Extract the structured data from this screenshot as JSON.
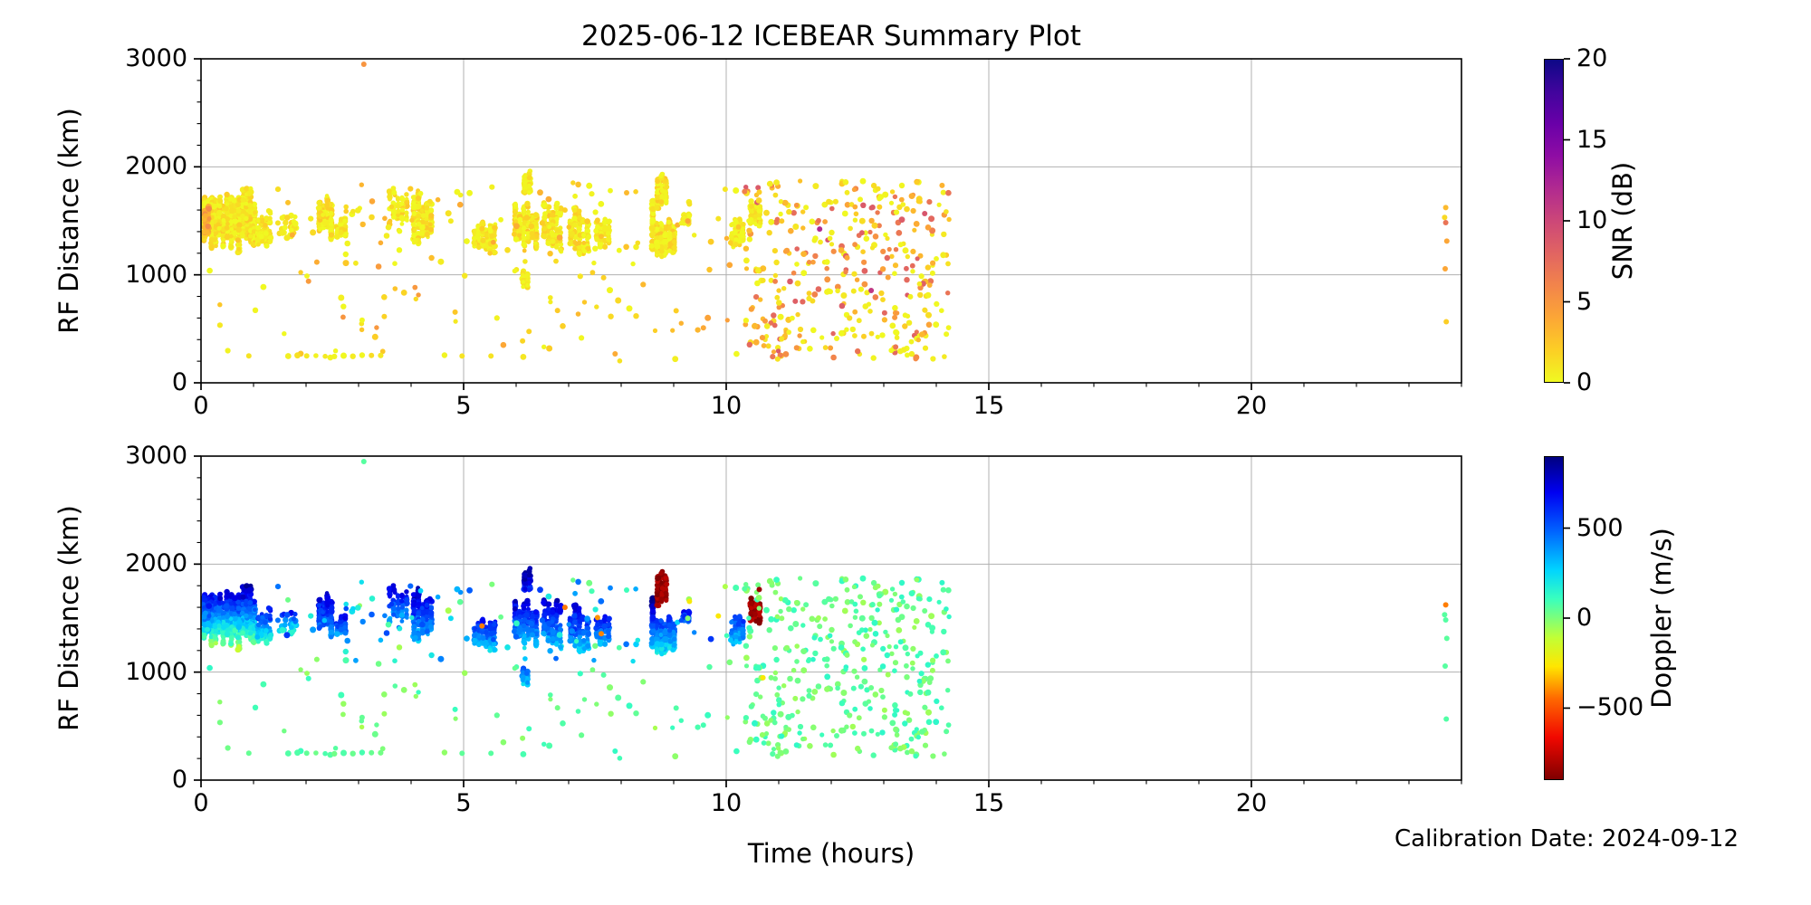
{
  "figure": {
    "title": "2025-06-12 ICEBEAR Summary Plot",
    "x_label": "Time (hours)",
    "y_label": "RF Distance (km)",
    "calibration_note": "Calibration Date: 2024-09-12",
    "background": "#ffffff",
    "text_color": "#000000",
    "grid_color": "#b0b0b0",
    "spine_color": "#000000"
  },
  "chart_data": {
    "type": "scatter",
    "title": "2025-06-12 ICEBEAR Summary Plot",
    "xlabel": "Time (hours)",
    "ylabel": "RF Distance (km)",
    "x_axis": {
      "range": [
        0,
        24
      ],
      "major_ticks": [
        0,
        5,
        10,
        15,
        20
      ],
      "minor_tick_step": 1,
      "grid": true
    },
    "y_axis": {
      "range": [
        0,
        3000
      ],
      "major_ticks": [
        0,
        1000,
        2000,
        3000
      ],
      "minor_tick_step": 200,
      "grid": true
    },
    "seed": 42,
    "panels": [
      {
        "name": "snr",
        "color_by": "snr",
        "colorbar": {
          "label": "SNR (dB)",
          "min": 0,
          "max": 20,
          "ticks": [
            20,
            15,
            10,
            5,
            0
          ],
          "colormap": "plasma_r",
          "reversed": true,
          "stops": [
            [
              0,
              "#0d0887"
            ],
            [
              0.1,
              "#41049d"
            ],
            [
              0.2,
              "#6a00a8"
            ],
            [
              0.3,
              "#8f0da4"
            ],
            [
              0.4,
              "#b12a90"
            ],
            [
              0.5,
              "#cc4778"
            ],
            [
              0.6,
              "#e16462"
            ],
            [
              0.7,
              "#f2844b"
            ],
            [
              0.8,
              "#fca636"
            ],
            [
              0.9,
              "#fcce25"
            ],
            [
              1,
              "#f0f921"
            ]
          ]
        }
      },
      {
        "name": "doppler",
        "color_by": "dop",
        "colorbar": {
          "label": "Doppler (m/s)",
          "min": -900,
          "max": 900,
          "ticks": [
            500,
            0,
            -500
          ],
          "colormap": "jet_r",
          "reversed": true,
          "stops": [
            [
              0,
              "#000080"
            ],
            [
              0.11,
              "#0000f1"
            ],
            [
              0.23,
              "#0063ff"
            ],
            [
              0.35,
              "#00d4ff"
            ],
            [
              0.44,
              "#39ffbe"
            ],
            [
              0.5,
              "#7dff7a"
            ],
            [
              0.56,
              "#c1ff36"
            ],
            [
              0.65,
              "#ffe600"
            ],
            [
              0.75,
              "#ff6800"
            ],
            [
              0.87,
              "#f10800"
            ],
            [
              1,
              "#800000"
            ]
          ]
        }
      }
    ],
    "clusters": [
      {
        "t": [
          0.02,
          1.05
        ],
        "rf": [
          1200,
          1810
        ],
        "n": 650,
        "style": "streaks",
        "snr": [
          0,
          2.5
        ],
        "dop": [
          -100,
          850
        ],
        "dop_by_rf": true
      },
      {
        "t": [
          0.04,
          0.18
        ],
        "rf": [
          1350,
          1680
        ],
        "n": 50,
        "style": "streaks",
        "snr": [
          3,
          6
        ],
        "dop": [
          200,
          700
        ],
        "dop_by_rf": true
      },
      {
        "t": [
          1.05,
          1.35
        ],
        "rf": [
          1260,
          1620
        ],
        "n": 80,
        "style": "streaks",
        "snr": [
          0,
          2
        ],
        "dop": [
          100,
          750
        ],
        "dop_by_rf": true
      },
      {
        "t": [
          1.45,
          1.85
        ],
        "rf": [
          1350,
          1550
        ],
        "n": 25,
        "style": "scatter",
        "snr": [
          0,
          2
        ],
        "dop": [
          100,
          600
        ],
        "dop_by_rf": true
      },
      {
        "t": [
          2.22,
          2.52
        ],
        "rf": [
          1300,
          1790
        ],
        "n": 140,
        "style": "streaks",
        "snr": [
          0,
          2.5
        ],
        "dop": [
          350,
          830
        ],
        "dop_by_rf": true
      },
      {
        "t": [
          2.55,
          2.78
        ],
        "rf": [
          1290,
          1560
        ],
        "n": 55,
        "style": "streaks",
        "snr": [
          0,
          2
        ],
        "dop": [
          250,
          780
        ],
        "dop_by_rf": true
      },
      {
        "t": [
          3.55,
          3.95
        ],
        "rf": [
          1430,
          1850
        ],
        "n": 70,
        "style": "streaks",
        "snr": [
          0,
          2.5
        ],
        "dop": [
          300,
          800
        ],
        "dop_by_rf": true
      },
      {
        "t": [
          4.02,
          4.42
        ],
        "rf": [
          1250,
          1790
        ],
        "n": 200,
        "style": "streaks",
        "snr": [
          0,
          2.5
        ],
        "dop": [
          250,
          840
        ],
        "dop_by_rf": true
      },
      {
        "t": [
          5.18,
          5.62
        ],
        "rf": [
          1150,
          1520
        ],
        "n": 120,
        "style": "streaks",
        "snr": [
          0,
          2.5
        ],
        "dop": [
          150,
          750
        ],
        "dop_by_rf": true
      },
      {
        "t": [
          5.95,
          6.42
        ],
        "rf": [
          1180,
          1700
        ],
        "n": 180,
        "style": "streaks",
        "snr": [
          0,
          3
        ],
        "dop": [
          200,
          820
        ],
        "dop_by_rf": true
      },
      {
        "t": [
          6.12,
          6.3
        ],
        "rf": [
          1700,
          1985
        ],
        "n": 60,
        "style": "streaks",
        "snr": [
          0,
          2
        ],
        "dop": [
          600,
          900
        ],
        "dop_by_rf": true
      },
      {
        "t": [
          6.1,
          6.25
        ],
        "rf": [
          870,
          1060
        ],
        "n": 35,
        "style": "streaks",
        "snr": [
          0,
          2
        ],
        "dop": [
          250,
          550
        ],
        "dop_by_rf": true
      },
      {
        "t": [
          6.5,
          6.88
        ],
        "rf": [
          1200,
          1700
        ],
        "n": 130,
        "style": "streaks",
        "snr": [
          0,
          2.5
        ],
        "dop": [
          250,
          820
        ],
        "dop_by_rf": true
      },
      {
        "t": [
          7.0,
          7.4
        ],
        "rf": [
          1150,
          1640
        ],
        "n": 120,
        "style": "streaks",
        "snr": [
          0,
          2.5
        ],
        "dop": [
          200,
          800
        ],
        "dop_by_rf": true
      },
      {
        "t": [
          7.5,
          7.8
        ],
        "rf": [
          1230,
          1530
        ],
        "n": 70,
        "style": "streaks",
        "snr": [
          0,
          2
        ],
        "dop": [
          250,
          720
        ],
        "dop_by_rf": true
      },
      {
        "t": [
          8.56,
          8.64
        ],
        "rf": [
          1520,
          1690
        ],
        "n": 35,
        "style": "streaks",
        "snr": [
          0,
          2
        ],
        "dop": [
          720,
          900
        ],
        "dop_by_rf": true
      },
      {
        "t": [
          8.66,
          8.88
        ],
        "rf": [
          1600,
          1950
        ],
        "n": 90,
        "style": "streaks",
        "snr": [
          0,
          2.5
        ],
        "dop": [
          -920,
          -770
        ],
        "dop_by_rf": false
      },
      {
        "t": [
          8.56,
          9.04
        ],
        "rf": [
          1130,
          1530
        ],
        "n": 200,
        "style": "streaks",
        "snr": [
          0,
          2.5
        ],
        "dop": [
          150,
          650
        ],
        "dop_by_rf": true
      },
      {
        "t": [
          9.16,
          9.32
        ],
        "rf": [
          1430,
          1590
        ],
        "n": 45,
        "style": "streaks",
        "snr": [
          0,
          2
        ],
        "dop": [
          350,
          780
        ],
        "dop_by_rf": true
      },
      {
        "t": [
          10.08,
          10.35
        ],
        "rf": [
          1190,
          1570
        ],
        "n": 70,
        "style": "streaks",
        "snr": [
          0,
          2.5
        ],
        "dop": [
          250,
          620
        ],
        "dop_by_rf": true
      },
      {
        "t": [
          10.44,
          10.68
        ],
        "rf": [
          1430,
          1730
        ],
        "n": 55,
        "style": "streaks",
        "snr": [
          0,
          2
        ],
        "dop": [
          -920,
          -760
        ],
        "dop_by_rf": false
      },
      {
        "t": [
          10.35,
          14.25
        ],
        "rf": [
          220,
          1870
        ],
        "n": 380,
        "style": "scatter",
        "snr": [
          0,
          9
        ],
        "dop": [
          -60,
          140
        ],
        "dop_by_rf": false
      },
      {
        "t": [
          0.1,
          10.35
        ],
        "rf": [
          200,
          1120
        ],
        "n": 75,
        "style": "scatter",
        "snr": [
          0,
          5
        ],
        "dop": [
          -70,
          130
        ],
        "dop_by_rf": false
      },
      {
        "t": [
          1.3,
          10.4
        ],
        "rf": [
          1100,
          1860
        ],
        "n": 90,
        "style": "scatter",
        "snr": [
          0,
          4
        ],
        "dop": [
          -80,
          600
        ],
        "dop_by_rf": false
      },
      {
        "t": [
          1.66,
          3.42
        ],
        "rf": [
          244,
          256
        ],
        "n": 11,
        "style": "row",
        "snr": [
          0,
          1.5
        ],
        "dop": [
          10,
          90
        ],
        "dop_by_rf": false
      }
    ],
    "singles": [
      {
        "t": 3.1,
        "rf": 2950,
        "snr": 5,
        "dop": 60
      },
      {
        "t": 0.91,
        "rf": 250,
        "snr": 1,
        "dop": 40
      },
      {
        "t": 4.97,
        "rf": 248,
        "snr": 1,
        "dop": 50
      },
      {
        "t": 5.52,
        "rf": 248,
        "snr": 1,
        "dop": 60
      },
      {
        "t": 5.35,
        "rf": 1428,
        "snr": 2,
        "dop": -420
      },
      {
        "t": 6.93,
        "rf": 1600,
        "snr": 2,
        "dop": -430
      },
      {
        "t": 7.55,
        "rf": 1505,
        "snr": 2,
        "dop": -390
      },
      {
        "t": 7.62,
        "rf": 1355,
        "snr": 2.5,
        "dop": -410
      },
      {
        "t": 9.3,
        "rf": 1655,
        "snr": 1,
        "dop": -250
      },
      {
        "t": 9.85,
        "rf": 1520,
        "snr": 1,
        "dop": -260
      },
      {
        "t": 10.7,
        "rf": 948,
        "snr": 1,
        "dop": -255
      },
      {
        "t": 10.63,
        "rf": 1765,
        "snr": 2,
        "dop": -850
      },
      {
        "t": 11.78,
        "rf": 1424,
        "snr": 12,
        "dop": 20
      },
      {
        "t": 12.76,
        "rf": 855,
        "snr": 11,
        "dop": 30
      },
      {
        "t": 13.78,
        "rf": 1567,
        "snr": 9,
        "dop": 25
      },
      {
        "t": 23.7,
        "rf": 1622,
        "snr": 3,
        "dop": -420
      },
      {
        "t": 23.68,
        "rf": 1532,
        "snr": 1.5,
        "dop": 60
      },
      {
        "t": 23.7,
        "rf": 1483,
        "snr": 7,
        "dop": 65
      },
      {
        "t": 23.72,
        "rf": 1312,
        "snr": 4,
        "dop": 55
      },
      {
        "t": 23.69,
        "rf": 1056,
        "snr": 4,
        "dop": 60
      },
      {
        "t": 23.71,
        "rf": 566,
        "snr": 2,
        "dop": 70
      }
    ]
  }
}
